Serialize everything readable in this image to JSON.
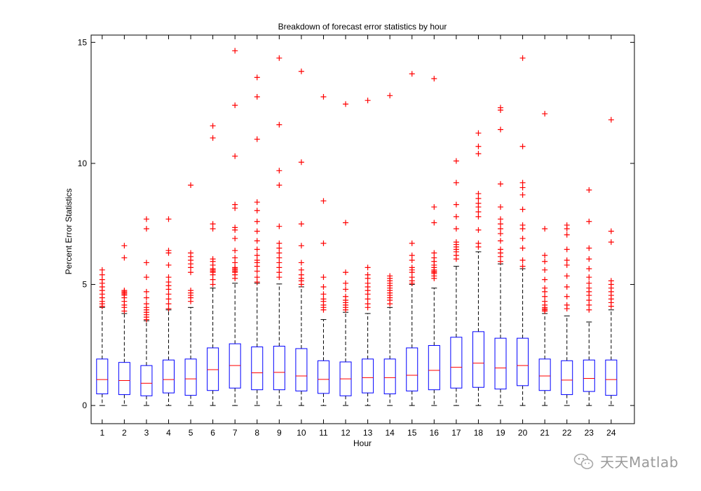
{
  "chart_data": {
    "type": "boxplot",
    "title": "Breakdown of forecast error statistics by hour",
    "xlabel": "Hour",
    "ylabel": "Percent Error Statistics",
    "categories": [
      "1",
      "2",
      "3",
      "4",
      "5",
      "6",
      "7",
      "8",
      "9",
      "10",
      "11",
      "12",
      "13",
      "14",
      "15",
      "16",
      "17",
      "18",
      "19",
      "20",
      "21",
      "22",
      "23",
      "24"
    ],
    "ylim": [
      -0.75,
      15.3
    ],
    "yticks": [
      0,
      5,
      10,
      15
    ],
    "yticklabels": [
      "0",
      "5",
      "10",
      "15"
    ],
    "grid": false,
    "colors": {
      "box": "#0000ff",
      "median": "#ff0000",
      "whisker": "#000000",
      "outlier": "#ff0000",
      "axis": "#000000"
    },
    "boxes": [
      {
        "hour": "1",
        "min": 0,
        "q1": 0.48,
        "median": 1.07,
        "q3": 1.92,
        "max": 4.05,
        "outliers": [
          4.1,
          4.2,
          4.3,
          4.45,
          4.6,
          4.75,
          4.9,
          5.05,
          5.2,
          5.4,
          5.6
        ]
      },
      {
        "hour": "2",
        "min": 0,
        "q1": 0.45,
        "median": 1.03,
        "q3": 1.78,
        "max": 3.8,
        "outliers": [
          3.9,
          4.05,
          4.15,
          4.3,
          4.45,
          4.55,
          4.6,
          4.65,
          4.7,
          4.75,
          6.1,
          6.6
        ]
      },
      {
        "hour": "3",
        "min": 0,
        "q1": 0.4,
        "median": 0.92,
        "q3": 1.65,
        "max": 3.5,
        "outliers": [
          3.55,
          3.65,
          3.75,
          3.85,
          3.95,
          4.05,
          4.2,
          4.45,
          4.7,
          5.3,
          5.9,
          7.3,
          7.7
        ]
      },
      {
        "hour": "4",
        "min": 0,
        "q1": 0.52,
        "median": 1.07,
        "q3": 1.88,
        "max": 3.95,
        "outliers": [
          4.0,
          4.2,
          4.4,
          4.6,
          4.8,
          4.95,
          5.1,
          5.3,
          5.8,
          6.3,
          6.4,
          7.7
        ]
      },
      {
        "hour": "5",
        "min": 0,
        "q1": 0.42,
        "median": 1.1,
        "q3": 1.92,
        "max": 4.05,
        "outliers": [
          4.3,
          4.45,
          4.55,
          4.65,
          4.75,
          5.5,
          5.7,
          5.85,
          6.0,
          6.15,
          6.3,
          9.1
        ]
      },
      {
        "hour": "6",
        "min": 0,
        "q1": 0.62,
        "median": 1.48,
        "q3": 2.38,
        "max": 4.85,
        "outliers": [
          5.0,
          5.2,
          5.4,
          5.5,
          5.55,
          5.6,
          5.65,
          5.8,
          5.95,
          6.05,
          7.3,
          7.5,
          11.05,
          11.55
        ]
      },
      {
        "hour": "7",
        "min": 0,
        "q1": 0.72,
        "median": 1.65,
        "q3": 2.55,
        "max": 5.05,
        "outliers": [
          5.25,
          5.4,
          5.5,
          5.55,
          5.6,
          5.65,
          5.7,
          5.9,
          6.1,
          6.4,
          6.9,
          7.25,
          7.35,
          8.15,
          8.3,
          10.3,
          12.4,
          14.65
        ]
      },
      {
        "hour": "8",
        "min": 0,
        "q1": 0.65,
        "median": 1.35,
        "q3": 2.42,
        "max": 5.05,
        "outliers": [
          5.1,
          5.3,
          5.55,
          5.75,
          5.9,
          6.0,
          6.2,
          6.45,
          6.8,
          7.2,
          7.6,
          8.05,
          8.4,
          11.0,
          12.75,
          13.55
        ]
      },
      {
        "hour": "9",
        "min": 0,
        "q1": 0.65,
        "median": 1.37,
        "q3": 2.45,
        "max": 5.02,
        "outliers": [
          5.3,
          5.5,
          5.7,
          5.9,
          6.1,
          6.3,
          6.5,
          6.7,
          7.4,
          9.1,
          9.7,
          11.6,
          14.35
        ]
      },
      {
        "hour": "10",
        "min": 0,
        "q1": 0.6,
        "median": 1.22,
        "q3": 2.35,
        "max": 4.9,
        "outliers": [
          5.0,
          5.15,
          5.25,
          5.4,
          5.6,
          5.9,
          6.6,
          7.5,
          10.05,
          13.8
        ]
      },
      {
        "hour": "11",
        "min": 0,
        "q1": 0.5,
        "median": 1.08,
        "q3": 1.85,
        "max": 3.55,
        "outliers": [
          3.95,
          4.05,
          4.15,
          4.3,
          4.4,
          4.6,
          4.9,
          5.3,
          6.7,
          8.45,
          12.75
        ]
      },
      {
        "hour": "12",
        "min": 0,
        "q1": 0.4,
        "median": 1.1,
        "q3": 1.8,
        "max": 3.85,
        "outliers": [
          3.95,
          4.05,
          4.15,
          4.25,
          4.35,
          4.5,
          4.8,
          5.05,
          5.5,
          7.55,
          12.45
        ]
      },
      {
        "hour": "13",
        "min": 0,
        "q1": 0.52,
        "median": 1.15,
        "q3": 1.92,
        "max": 3.8,
        "outliers": [
          4.05,
          4.2,
          4.4,
          4.6,
          4.75,
          4.9,
          5.05,
          5.25,
          5.4,
          5.7,
          12.6
        ]
      },
      {
        "hour": "14",
        "min": 0,
        "q1": 0.48,
        "median": 1.15,
        "q3": 1.92,
        "max": 4.05,
        "outliers": [
          4.2,
          4.35,
          4.45,
          4.55,
          4.65,
          4.75,
          4.85,
          4.95,
          5.05,
          5.15,
          5.25,
          5.35,
          12.8
        ]
      },
      {
        "hour": "15",
        "min": 0,
        "q1": 0.6,
        "median": 1.25,
        "q3": 2.38,
        "max": 5.0,
        "outliers": [
          5.05,
          5.15,
          5.3,
          5.5,
          5.6,
          5.7,
          6.0,
          6.2,
          6.7,
          13.7
        ]
      },
      {
        "hour": "16",
        "min": 0,
        "q1": 0.65,
        "median": 1.45,
        "q3": 2.48,
        "max": 4.85,
        "outliers": [
          5.25,
          5.35,
          5.45,
          5.5,
          5.55,
          5.6,
          5.7,
          5.8,
          5.95,
          6.1,
          6.3,
          7.55,
          8.2,
          13.5
        ]
      },
      {
        "hour": "17",
        "min": 0,
        "q1": 0.72,
        "median": 1.58,
        "q3": 2.82,
        "max": 5.75,
        "outliers": [
          6.05,
          6.2,
          6.35,
          6.45,
          6.55,
          6.65,
          6.75,
          7.3,
          7.8,
          8.3,
          9.2,
          10.1
        ]
      },
      {
        "hour": "18",
        "min": 0,
        "q1": 0.75,
        "median": 1.75,
        "q3": 3.05,
        "max": 6.35,
        "outliers": [
          6.55,
          6.7,
          7.25,
          7.8,
          8.0,
          8.2,
          8.35,
          8.55,
          8.75,
          10.4,
          10.7,
          11.25
        ]
      },
      {
        "hour": "19",
        "min": 0,
        "q1": 0.68,
        "median": 1.55,
        "q3": 2.78,
        "max": 5.85,
        "outliers": [
          5.95,
          6.15,
          6.3,
          6.45,
          6.8,
          7.1,
          7.3,
          7.5,
          7.7,
          8.2,
          9.15,
          11.4,
          12.2,
          12.3
        ]
      },
      {
        "hour": "20",
        "min": 0,
        "q1": 0.82,
        "median": 1.65,
        "q3": 2.78,
        "max": 5.65,
        "outliers": [
          5.75,
          6.0,
          6.5,
          6.9,
          7.3,
          7.45,
          8.1,
          8.7,
          9.0,
          9.2,
          10.7,
          14.35
        ]
      },
      {
        "hour": "21",
        "min": 0,
        "q1": 0.62,
        "median": 1.22,
        "q3": 1.92,
        "max": 3.8,
        "outliers": [
          3.9,
          3.95,
          4.0,
          4.05,
          4.15,
          4.3,
          4.5,
          4.7,
          4.85,
          5.2,
          5.6,
          5.95,
          6.2,
          7.3,
          12.05
        ]
      },
      {
        "hour": "22",
        "min": 0,
        "q1": 0.45,
        "median": 1.05,
        "q3": 1.85,
        "max": 3.7,
        "outliers": [
          4.0,
          4.15,
          4.5,
          4.9,
          5.35,
          5.8,
          6.0,
          6.45,
          7.05,
          7.3,
          7.45
        ]
      },
      {
        "hour": "23",
        "min": 0,
        "q1": 0.58,
        "median": 1.12,
        "q3": 1.88,
        "max": 3.45,
        "outliers": [
          3.95,
          4.15,
          4.35,
          4.55,
          4.7,
          4.85,
          5.05,
          5.3,
          5.65,
          6.05,
          6.5,
          7.6,
          8.9
        ]
      },
      {
        "hour": "24",
        "min": 0,
        "q1": 0.42,
        "median": 1.07,
        "q3": 1.88,
        "max": 3.95,
        "outliers": [
          4.1,
          4.25,
          4.4,
          4.55,
          4.7,
          4.85,
          5.0,
          5.15,
          6.75,
          7.2,
          11.8
        ]
      }
    ]
  },
  "watermark": {
    "text": "天天Matlab",
    "icon": "wechat-icon"
  }
}
